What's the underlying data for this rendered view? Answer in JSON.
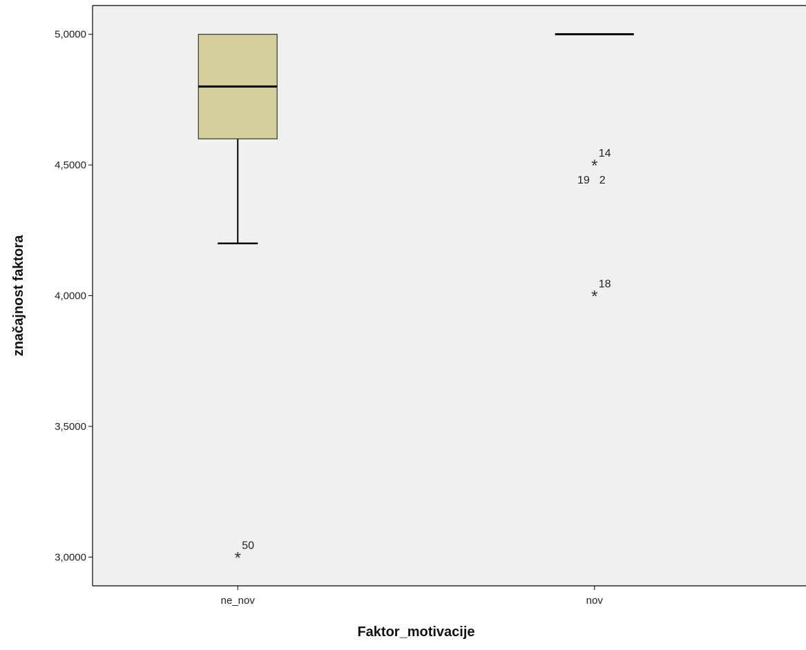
{
  "colors": {
    "plot_background": "#f0f0f0",
    "box_fill": "#d3ce9a",
    "line": "#000000",
    "frame": "#000000"
  },
  "chart_data": {
    "type": "boxplot",
    "xlabel": "Faktor_motivacije",
    "ylabel": "značajnost faktora",
    "ylim": [
      2.89,
      5.11
    ],
    "yticks": [
      3.0,
      3.5,
      4.0,
      4.5,
      5.0
    ],
    "ytick_labels": [
      "3,0000",
      "3,5000",
      "4,0000",
      "4,5000",
      "5,0000"
    ],
    "categories": [
      "ne_nov",
      "nov"
    ],
    "boxes": [
      {
        "category": "ne_nov",
        "whisker_low": 4.2,
        "q1": 4.6,
        "median": 4.8,
        "q3": 5.0,
        "whisker_high": 5.0,
        "outliers": [
          {
            "value": 3.0,
            "label": "50",
            "label_pos": "upper-right"
          }
        ]
      },
      {
        "category": "nov",
        "whisker_low": 5.0,
        "q1": 5.0,
        "median": 5.0,
        "q3": 5.0,
        "whisker_high": 5.0,
        "outliers": [
          {
            "value": 4.5,
            "label": "14",
            "label_pos": "upper-right"
          },
          {
            "value": 4.5,
            "label": "19",
            "label_pos": "lower-left"
          },
          {
            "value": 4.5,
            "label": "2",
            "label_pos": "lower-right"
          },
          {
            "value": 4.0,
            "label": "18",
            "label_pos": "upper-right"
          }
        ]
      }
    ],
    "grid": false,
    "legend": "none"
  }
}
